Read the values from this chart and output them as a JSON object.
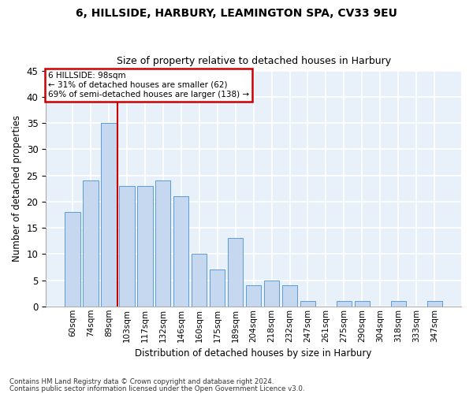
{
  "title1": "6, HILLSIDE, HARBURY, LEAMINGTON SPA, CV33 9EU",
  "title2": "Size of property relative to detached houses in Harbury",
  "xlabel": "Distribution of detached houses by size in Harbury",
  "ylabel": "Number of detached properties",
  "categories": [
    "60sqm",
    "74sqm",
    "89sqm",
    "103sqm",
    "117sqm",
    "132sqm",
    "146sqm",
    "160sqm",
    "175sqm",
    "189sqm",
    "204sqm",
    "218sqm",
    "232sqm",
    "247sqm",
    "261sqm",
    "275sqm",
    "290sqm",
    "304sqm",
    "318sqm",
    "333sqm",
    "347sqm"
  ],
  "values": [
    18,
    24,
    35,
    23,
    23,
    24,
    21,
    10,
    7,
    13,
    4,
    5,
    4,
    1,
    0,
    1,
    1,
    0,
    1,
    0,
    1
  ],
  "bar_color": "#c5d8f0",
  "bar_edge_color": "#5b9bd5",
  "fig_background_color": "#ffffff",
  "ax_background_color": "#e8f0fa",
  "grid_color": "#ffffff",
  "vline_x": 2.5,
  "vline_color": "#cc0000",
  "annotation_text": "6 HILLSIDE: 98sqm\n← 31% of detached houses are smaller (62)\n69% of semi-detached houses are larger (138) →",
  "annotation_box_color": "#cc0000",
  "ylim": [
    0,
    45
  ],
  "yticks": [
    0,
    5,
    10,
    15,
    20,
    25,
    30,
    35,
    40,
    45
  ],
  "footer1": "Contains HM Land Registry data © Crown copyright and database right 2024.",
  "footer2": "Contains public sector information licensed under the Open Government Licence v3.0."
}
